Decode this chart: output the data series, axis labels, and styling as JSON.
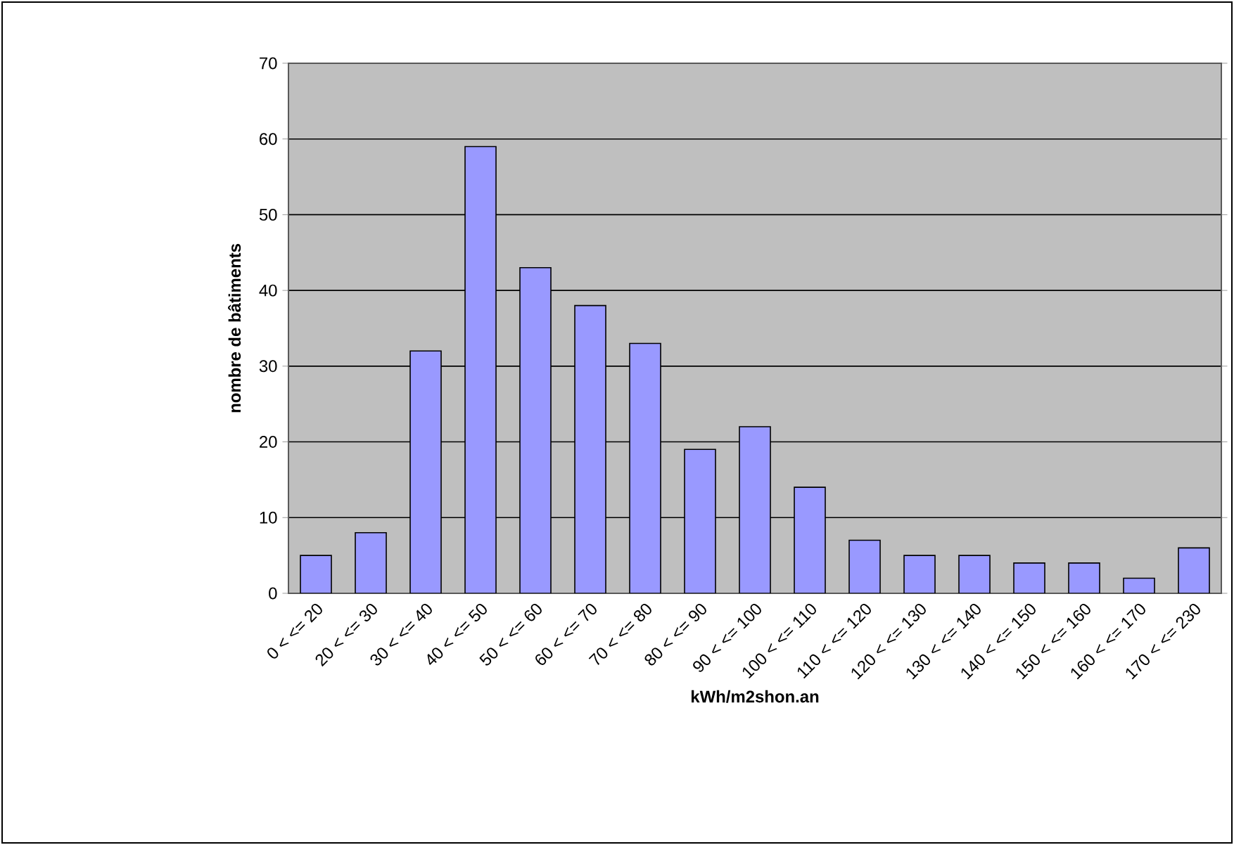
{
  "chart_data": {
    "type": "bar",
    "xlabel": "kWh/m2shon.an",
    "ylabel": "nombre de bâtiments",
    "categories": [
      "0 <  <= 20",
      "20 <  <= 30",
      "30 <  <= 40",
      "40 <  <= 50",
      "50 <  <= 60",
      "60 <  <= 70",
      "70 <  <= 80",
      "80 <  <= 90",
      "90 <  <= 100",
      "100 <  <= 110",
      "110 <  <= 120",
      "120 <  <= 130",
      "130 <  <= 140",
      "140 <  <= 150",
      "150 <  <= 160",
      "160 <  <= 170",
      "170 <  <= 230"
    ],
    "values": [
      5,
      8,
      32,
      59,
      43,
      38,
      33,
      19,
      22,
      14,
      7,
      5,
      5,
      4,
      4,
      2,
      6
    ],
    "color": "#9999ff",
    "ylim": [
      0,
      70
    ],
    "yticks": [
      0,
      10,
      20,
      30,
      40,
      50,
      60,
      70
    ],
    "grid": "y"
  }
}
